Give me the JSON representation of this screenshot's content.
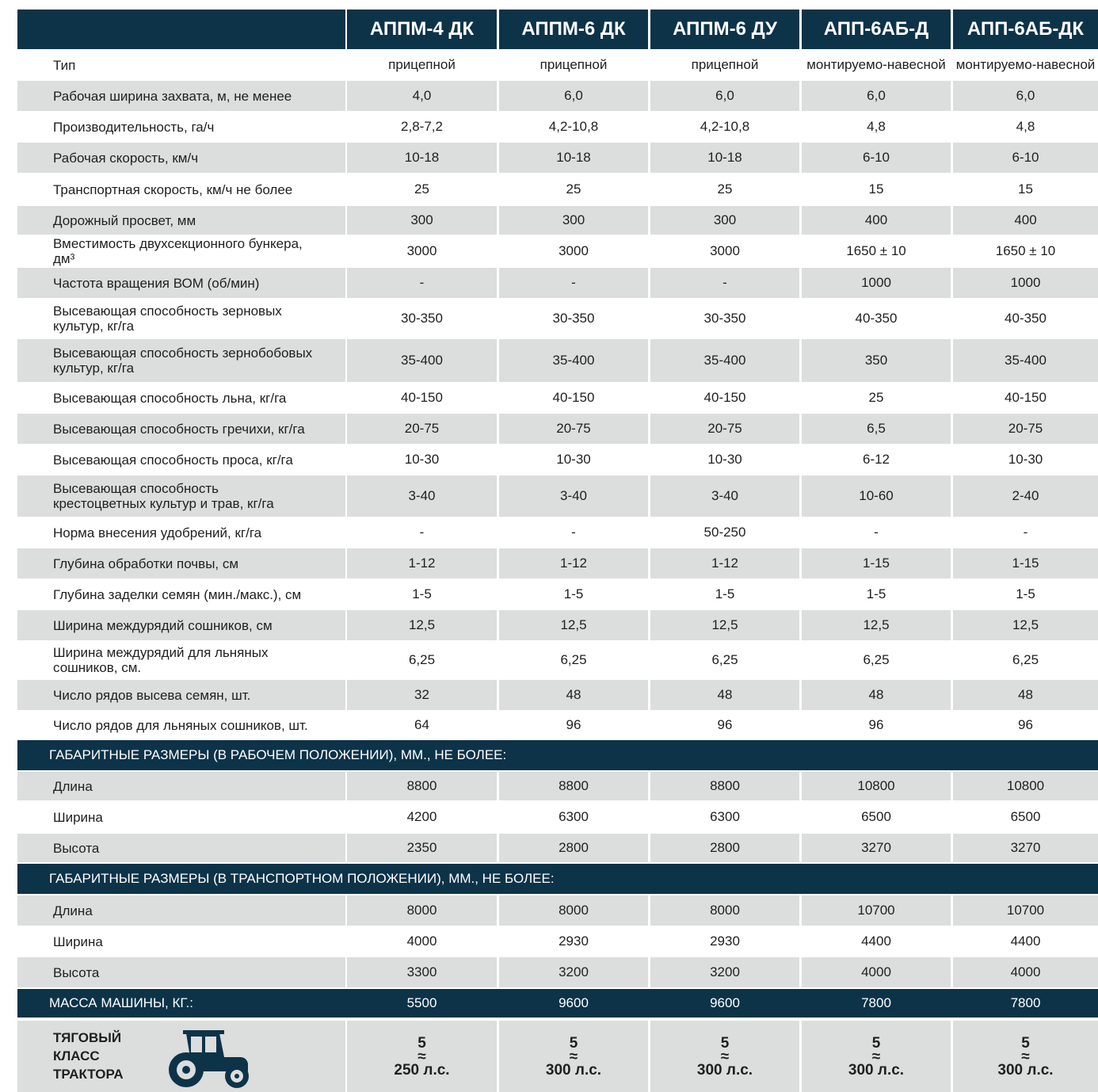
{
  "table": {
    "columns": [
      "АППМ-4 ДК",
      "АППМ-6 ДК",
      "АППМ-6 ДУ",
      "АПП-6АБ-Д",
      "АПП-6АБ-ДК"
    ],
    "specs": [
      {
        "label": "Тип",
        "values": [
          "прицепной",
          "прицепной",
          "прицепной",
          "монтируемо-навесной",
          "монтируемо-навесной"
        ]
      },
      {
        "label": "Рабочая ширина захвата, м, не менее",
        "values": [
          "4,0",
          "6,0",
          "6,0",
          "6,0",
          "6,0"
        ]
      },
      {
        "label": "Производительность, га/ч",
        "values": [
          "2,8-7,2",
          "4,2-10,8",
          "4,2-10,8",
          "4,8",
          "4,8"
        ]
      },
      {
        "label": "Рабочая скорость, км/ч",
        "values": [
          "10-18",
          "10-18",
          "10-18",
          "6-10",
          "6-10"
        ]
      },
      {
        "label": "Транспортная скорость, км/ч не более",
        "values": [
          "25",
          "25",
          "25",
          "15",
          "15"
        ]
      },
      {
        "label": "Дорожный просвет, мм",
        "values": [
          "300",
          "300",
          "300",
          "400",
          "400"
        ]
      },
      {
        "label": "Вместимость двухсекционного бункера, дм³",
        "values": [
          "3000",
          "3000",
          "3000",
          "1650 ± 10",
          "1650 ± 10"
        ]
      },
      {
        "label": "Частота вращения ВОМ (об/мин)",
        "values": [
          "-",
          "-",
          "-",
          "1000",
          "1000"
        ]
      },
      {
        "label": "Высевающая способность зерновых культур, кг/га",
        "values": [
          "30-350",
          "30-350",
          "30-350",
          "40-350",
          "40-350"
        ]
      },
      {
        "label": "Высевающая способность зернобобовых культур, кг/га",
        "values": [
          "35-400",
          "35-400",
          "35-400",
          "350",
          "35-400"
        ]
      },
      {
        "label": "Высевающая способность льна, кг/га",
        "values": [
          "40-150",
          "40-150",
          "40-150",
          "25",
          "40-150"
        ]
      },
      {
        "label": "Высевающая способность гречихи, кг/га",
        "values": [
          "20-75",
          "20-75",
          "20-75",
          "6,5",
          "20-75"
        ]
      },
      {
        "label": "Высевающая способность проса, кг/га",
        "values": [
          "10-30",
          "10-30",
          "10-30",
          "6-12",
          "10-30"
        ]
      },
      {
        "label": "Высевающая способность крестоцветных культур и трав, кг/га",
        "values": [
          "3-40",
          "3-40",
          "3-40",
          "10-60",
          "2-40"
        ]
      },
      {
        "label": "Норма внесения удобрений, кг/га",
        "values": [
          "-",
          "-",
          "50-250",
          "-",
          "-"
        ]
      },
      {
        "label": "Глубина обработки почвы, см",
        "values": [
          "1-12",
          "1-12",
          "1-12",
          "1-15",
          "1-15"
        ]
      },
      {
        "label": "Глубина заделки семян (мин./макс.), см",
        "values": [
          "1-5",
          "1-5",
          "1-5",
          "1-5",
          "1-5"
        ]
      },
      {
        "label": "Ширина междурядий  сошников, см",
        "values": [
          "12,5",
          "12,5",
          "12,5",
          "12,5",
          "12,5"
        ]
      },
      {
        "label": "Ширина междурядий для льняных сошников, см.",
        "values": [
          "6,25",
          "6,25",
          "6,25",
          "6,25",
          "6,25"
        ]
      },
      {
        "label": "Число рядов высева семян, шт.",
        "values": [
          "32",
          "48",
          "48",
          "48",
          "48"
        ]
      },
      {
        "label": "Число рядов для льняных сошников, шт.",
        "values": [
          "64",
          "96",
          "96",
          "96",
          "96"
        ]
      }
    ],
    "sections": [
      {
        "title": "ГАБАРИТНЫЕ  РАЗМЕРЫ (В РАБОЧЕМ ПОЛОЖЕНИИ), ММ., НЕ БОЛЕЕ:",
        "rows": [
          {
            "label": "Длина",
            "values": [
              "8800",
              "8800",
              "8800",
              "10800",
              "10800"
            ]
          },
          {
            "label": "Ширина",
            "values": [
              "4200",
              "6300",
              "6300",
              "6500",
              "6500"
            ]
          },
          {
            "label": "Высота",
            "values": [
              "2350",
              "2800",
              "2800",
              "3270",
              "3270"
            ]
          }
        ]
      },
      {
        "title": "ГАБАРИТНЫЕ  РАЗМЕРЫ (В ТРАНСПОРТНОМ ПОЛОЖЕНИИ), ММ., НЕ БОЛЕЕ:",
        "rows": [
          {
            "label": "Длина",
            "values": [
              "8000",
              "8000",
              "8000",
              "10700",
              "10700"
            ]
          },
          {
            "label": "Ширина",
            "values": [
              "4000",
              "2930",
              "2930",
              "4400",
              "4400"
            ]
          },
          {
            "label": "Высота",
            "values": [
              "3300",
              "3200",
              "3200",
              "4000",
              "4000"
            ]
          }
        ]
      }
    ],
    "mass": {
      "label": "МАССА МАШИНЫ, КГ.:",
      "values": [
        "5500",
        "9600",
        "9600",
        "7800",
        "7800"
      ]
    },
    "traction": {
      "label": "ТЯГОВЫЙ КЛАСС ТРАКТОРА",
      "approx": "≈",
      "values": [
        {
          "class": "5",
          "power": "250 л.с."
        },
        {
          "class": "5",
          "power": "300 л.с."
        },
        {
          "class": "5",
          "power": "300 л.с."
        },
        {
          "class": "5",
          "power": "300 л.с."
        },
        {
          "class": "5",
          "power": "300 л.с."
        }
      ]
    }
  }
}
